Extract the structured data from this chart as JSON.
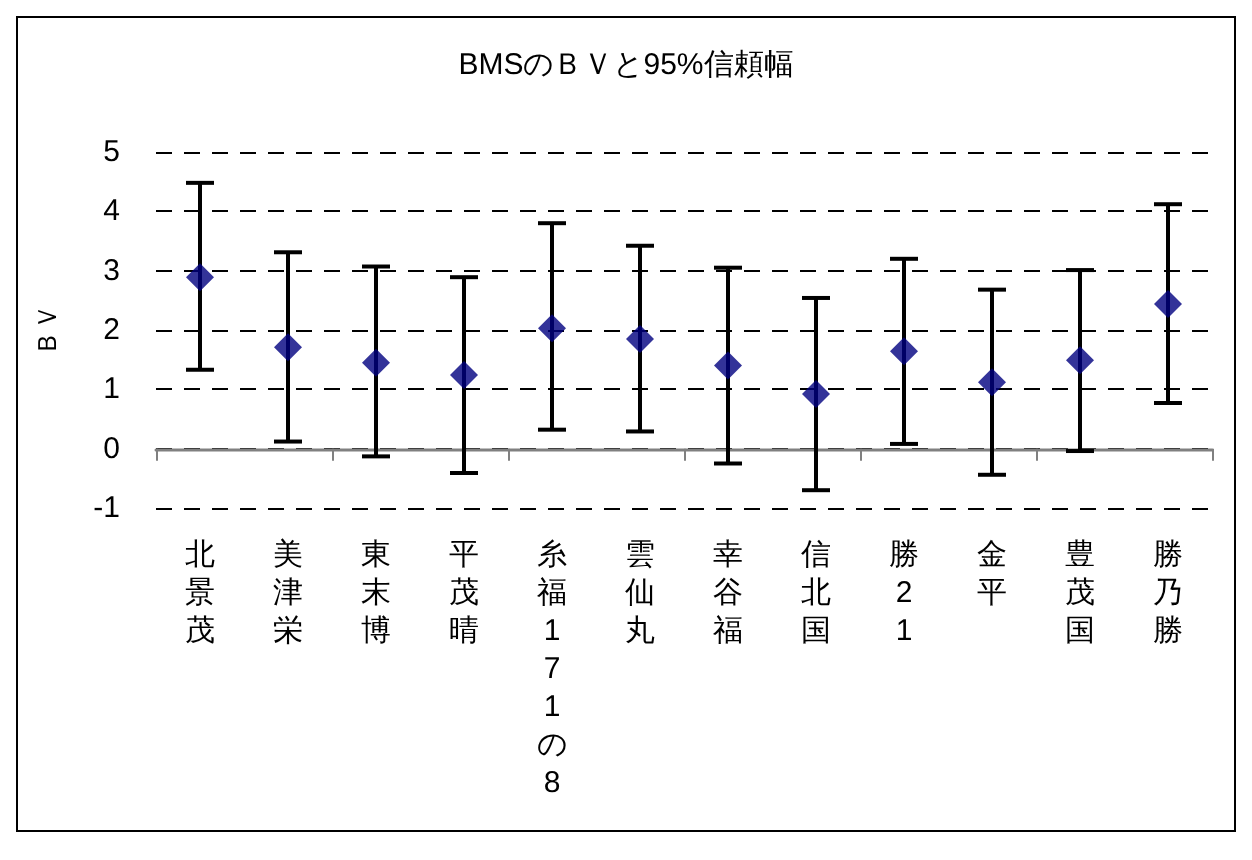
{
  "chart_data": {
    "type": "scatter",
    "title": "BMSのＢＶと95%信頼幅",
    "ylabel": "ＢＶ",
    "categories": [
      "北景茂",
      "美津栄",
      "東末博",
      "平茂晴",
      "糸福171の8",
      "雲仙丸",
      "幸谷福",
      "信北国",
      "勝21",
      "金平",
      "豊茂国",
      "勝乃勝"
    ],
    "series": [
      {
        "color": "#000080",
        "values": [
          2.89,
          1.71,
          1.45,
          1.24,
          2.03,
          1.85,
          1.4,
          0.92,
          1.64,
          1.12,
          1.49,
          2.44
        ],
        "errors": [
          [
            1.33,
            4.48
          ],
          [
            0.12,
            3.31
          ],
          [
            -0.13,
            3.07
          ],
          [
            -0.41,
            2.89
          ],
          [
            0.32,
            3.8
          ],
          [
            0.29,
            3.42
          ],
          [
            -0.25,
            3.05
          ],
          [
            -0.7,
            2.54
          ],
          [
            0.08,
            3.2
          ],
          [
            -0.44,
            2.68
          ],
          [
            -0.04,
            3.01
          ],
          [
            0.77,
            4.12
          ]
        ]
      }
    ],
    "ylim": [
      -1,
      5
    ],
    "yticks": [
      -1,
      0,
      1,
      2,
      3,
      4,
      5
    ],
    "grid": "y",
    "marker": "diamond"
  }
}
